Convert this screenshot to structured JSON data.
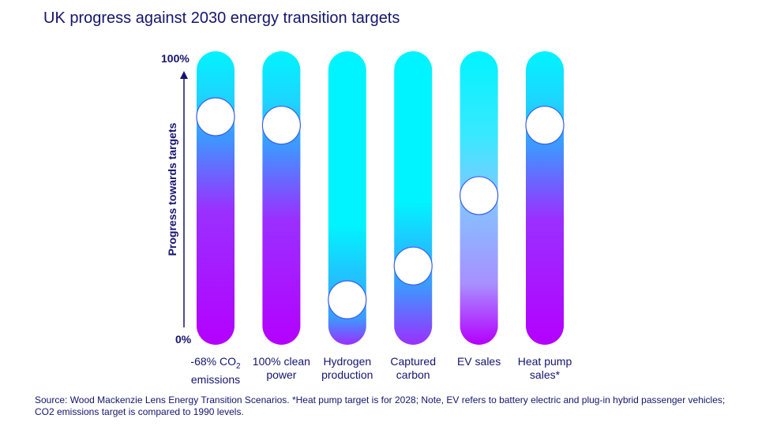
{
  "chart_data": {
    "type": "bar",
    "title": "UK progress against 2030 energy transition targets",
    "ylabel": "Progress towards targets",
    "ylim": [
      0,
      100
    ],
    "yticks": [
      "0%",
      "100%"
    ],
    "categories": [
      {
        "line1": "-68% CO",
        "sub": "2",
        "line2": "emissions"
      },
      {
        "line1": "100% clean",
        "line2": "power"
      },
      {
        "line1": "Hydrogen",
        "line2": "production"
      },
      {
        "line1": "Captured",
        "line2": "carbon"
      },
      {
        "line1": "EV sales",
        "line2": ""
      },
      {
        "line1": "Heat pump",
        "line2": "sales*"
      }
    ],
    "values": [
      79,
      76,
      14,
      26,
      51,
      76
    ],
    "grid": false,
    "colors": {
      "top": "#00f4ff",
      "mid": "#3a9cff",
      "bottom": "#b400ff",
      "marker": "#ffffff",
      "marker_edge": "#3a5cf0",
      "text": "#14146e"
    }
  },
  "source": "Source: Wood Mackenzie Lens Energy Transition Scenarios. *Heat pump target is for 2028; Note, EV refers to battery electric and plug-in hybrid passenger vehicles; CO2 emissions target is compared to 1990 levels."
}
